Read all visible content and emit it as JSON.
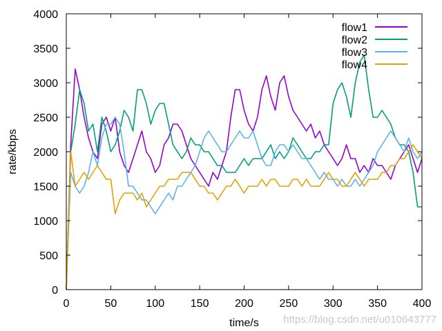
{
  "chart_data": {
    "type": "line",
    "title": "",
    "xlabel": "time/s",
    "ylabel": "rate/kbps",
    "xlim": [
      0,
      400
    ],
    "ylim": [
      0,
      4000
    ],
    "x_ticks": [
      0,
      50,
      100,
      150,
      200,
      250,
      300,
      350,
      400
    ],
    "y_ticks": [
      0,
      500,
      1000,
      1500,
      2000,
      2500,
      3000,
      3500,
      4000
    ],
    "grid": false,
    "legend_position": "top-right",
    "x": [
      0,
      5,
      10,
      15,
      20,
      25,
      30,
      35,
      40,
      45,
      50,
      55,
      60,
      65,
      70,
      75,
      80,
      85,
      90,
      95,
      100,
      105,
      110,
      115,
      120,
      125,
      130,
      135,
      140,
      145,
      150,
      155,
      160,
      165,
      170,
      175,
      180,
      185,
      190,
      195,
      200,
      205,
      210,
      215,
      220,
      225,
      230,
      235,
      240,
      245,
      250,
      255,
      260,
      265,
      270,
      275,
      280,
      285,
      290,
      295,
      300,
      305,
      310,
      315,
      320,
      325,
      330,
      335,
      340,
      345,
      350,
      355,
      360,
      365,
      370,
      375,
      380,
      385,
      390,
      395,
      400
    ],
    "series": [
      {
        "name": "flow1",
        "color": "#9400d3",
        "values": [
          0,
          2100,
          3200,
          2900,
          2500,
          2200,
          2000,
          1900,
          2400,
          2500,
          2300,
          2500,
          2000,
          1800,
          1700,
          1900,
          2100,
          2300,
          2000,
          1900,
          1700,
          1800,
          2100,
          2200,
          2400,
          2400,
          2300,
          2100,
          1900,
          1800,
          1700,
          1600,
          1500,
          1700,
          1600,
          1800,
          2000,
          2500,
          2900,
          2900,
          2600,
          2400,
          2300,
          2500,
          2900,
          3100,
          2800,
          2600,
          3000,
          3100,
          2800,
          2600,
          2500,
          2400,
          2300,
          2400,
          2200,
          2300,
          2100,
          2000,
          1900,
          1800,
          1900,
          2100,
          1900,
          1900,
          1700,
          1800,
          1700,
          1900,
          1800,
          1800,
          1700,
          1600,
          1800,
          1900,
          2000,
          2100,
          1900,
          1700,
          1900
        ]
      },
      {
        "name": "flow2",
        "color": "#009e73",
        "values": [
          0,
          2000,
          2400,
          2900,
          2700,
          2300,
          2400,
          2000,
          2500,
          2300,
          2000,
          2100,
          2300,
          2600,
          2500,
          2300,
          2900,
          2900,
          2700,
          2400,
          2600,
          2700,
          2700,
          2400,
          2100,
          2000,
          1900,
          2000,
          2200,
          2100,
          2100,
          2000,
          2000,
          1900,
          1800,
          1800,
          1700,
          1700,
          1700,
          1800,
          1900,
          1800,
          1900,
          1900,
          1900,
          2000,
          2100,
          1900,
          2000,
          1900,
          2000,
          2200,
          2100,
          2000,
          1900,
          1900,
          2000,
          2000,
          2100,
          2100,
          2700,
          2900,
          3000,
          2800,
          2500,
          3000,
          3300,
          3400,
          2900,
          2500,
          2500,
          2600,
          2500,
          2400,
          2200,
          2100,
          2100,
          2000,
          1700,
          1200,
          1200
        ]
      },
      {
        "name": "flow3",
        "color": "#56b4e9",
        "values": [
          0,
          1700,
          1500,
          1400,
          1500,
          1700,
          2000,
          1800,
          2200,
          2400,
          2400,
          2500,
          2400,
          2000,
          1500,
          1500,
          1400,
          1300,
          1300,
          1200,
          1100,
          1200,
          1300,
          1400,
          1300,
          1500,
          1500,
          1600,
          1700,
          1800,
          2000,
          2200,
          2300,
          2200,
          2100,
          2000,
          2000,
          2100,
          2200,
          2300,
          2200,
          2200,
          2300,
          2100,
          1900,
          1800,
          1800,
          2000,
          2100,
          2100,
          2000,
          2100,
          2000,
          1900,
          1900,
          1800,
          1700,
          1600,
          1700,
          1600,
          1600,
          1500,
          1600,
          1500,
          1500,
          1600,
          1500,
          1600,
          1700,
          1800,
          2000,
          2100,
          2200,
          2300,
          2200,
          2100,
          2000,
          2200,
          2000,
          1900,
          2000
        ]
      },
      {
        "name": "flow4",
        "color": "#e69f00",
        "values": [
          0,
          2000,
          1500,
          1600,
          1700,
          1600,
          1700,
          1800,
          1700,
          1600,
          1600,
          1100,
          1300,
          1400,
          1400,
          1400,
          1300,
          1400,
          1200,
          1300,
          1400,
          1500,
          1500,
          1600,
          1600,
          1600,
          1700,
          1700,
          1700,
          1600,
          1500,
          1500,
          1400,
          1400,
          1300,
          1400,
          1500,
          1500,
          1600,
          1500,
          1400,
          1500,
          1500,
          1500,
          1600,
          1500,
          1600,
          1600,
          1500,
          1500,
          1500,
          1600,
          1600,
          1500,
          1600,
          1500,
          1500,
          1500,
          1600,
          1700,
          1600,
          1600,
          1500,
          1500,
          1600,
          1700,
          1600,
          1500,
          1600,
          1600,
          1600,
          1700,
          1700,
          1800,
          1800,
          1900,
          1900,
          2000,
          2100,
          2000,
          1900
        ]
      }
    ]
  },
  "watermark": "https://blog.csdn.net/u010643777"
}
